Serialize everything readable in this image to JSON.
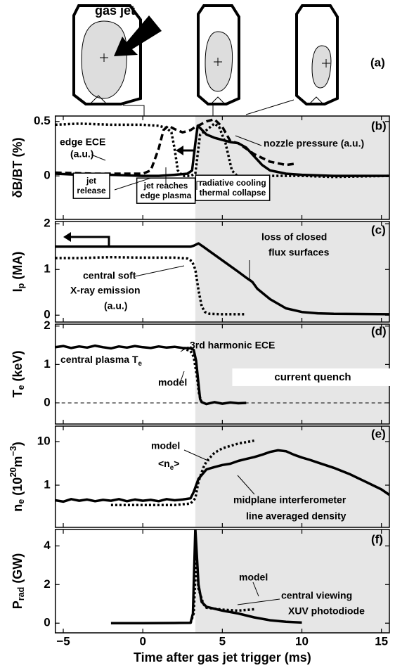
{
  "diagram": {
    "label": "(a)",
    "annotation": "gas jet"
  },
  "chart_data": [
    {
      "type": "line",
      "label": "(b)",
      "ylabel": [
        {
          "t": "δB/BT (%)"
        }
      ],
      "xlim": [
        -5.5,
        15.5
      ],
      "xticks": [
        -5,
        0,
        5,
        10,
        15
      ],
      "ylim": [
        -0.4,
        0.55
      ],
      "yticks": [
        0,
        0.5
      ],
      "log": false,
      "shade_from": 3.3,
      "series": [
        {
          "color": "#000000",
          "style": "solid",
          "x": [
            -5.5,
            -4,
            -2,
            0,
            1,
            2,
            2.8,
            3.1,
            3.3,
            3.45,
            3.6,
            4,
            4.5,
            5,
            5.5,
            6,
            6.5,
            7,
            7.5,
            8,
            9,
            10,
            12,
            15.5
          ],
          "values": [
            0.02,
            0.01,
            0.01,
            0.0,
            0.0,
            0.01,
            0.02,
            0.05,
            0.3,
            0.46,
            0.44,
            0.38,
            0.35,
            0.33,
            0.31,
            0.3,
            0.26,
            0.18,
            0.1,
            0.05,
            0.02,
            0.01,
            0.0,
            0.0
          ]
        },
        {
          "color": "#000000",
          "style": "dotted",
          "x": [
            -5.5,
            -4,
            -2,
            0,
            1,
            1.5,
            1.8,
            2,
            2.2,
            2.5,
            3,
            3.3,
            3.6,
            4,
            4.5,
            4.8,
            5.2,
            5.6,
            6,
            8,
            10,
            12,
            15.5
          ],
          "values": [
            0.47,
            0.48,
            0.47,
            0.47,
            0.46,
            0.44,
            0.4,
            0.25,
            0.05,
            0.0,
            0.0,
            0.02,
            0.38,
            0.42,
            0.48,
            0.45,
            0.3,
            0.05,
            -0.01,
            0.0,
            0.0,
            -0.01,
            0.0
          ]
        },
        {
          "color": "#000000",
          "style": "dashed",
          "x": [
            -5.5,
            -3,
            -1,
            0,
            0.5,
            1,
            1.3,
            1.6,
            2,
            2.5,
            3,
            3.3,
            3.6,
            4,
            4.5,
            5,
            5.5,
            6,
            6.5,
            7,
            8,
            9,
            9.5
          ],
          "values": [
            0.03,
            0.02,
            0.02,
            0.02,
            0.05,
            0.25,
            0.42,
            0.46,
            0.43,
            0.4,
            0.42,
            0.45,
            0.47,
            0.5,
            0.52,
            0.45,
            0.32,
            0.3,
            0.25,
            0.2,
            0.13,
            0.1,
            0.11
          ]
        }
      ],
      "annotations": [
        {
          "text": "(b)"
        },
        {
          "text": "edge ECE"
        },
        {
          "text": "(a.u.)"
        },
        {
          "text": "nozzle pressure (a.u.)"
        },
        {
          "lines": [
            "jet",
            "release"
          ],
          "box": "outlined"
        },
        {
          "lines": [
            "jet reaches",
            "edge plasma"
          ],
          "box": "outlined"
        },
        {
          "lines": [
            "radiative cooling",
            "thermal collapse"
          ],
          "box": "outlined"
        }
      ]
    },
    {
      "type": "line",
      "label": "(c)",
      "ylabel": [
        {
          "t": "I"
        },
        {
          "t": "p",
          "sub": true
        },
        {
          "t": " (MA)"
        }
      ],
      "xlim": [
        -5.5,
        15.5
      ],
      "xticks": [
        -5,
        0,
        5,
        10,
        15
      ],
      "ylim": [
        -0.15,
        2.05
      ],
      "yticks": [
        0,
        1,
        2
      ],
      "log": false,
      "shade_from": 3.3,
      "series": [
        {
          "color": "#000000",
          "style": "solid",
          "x": [
            -5.5,
            -4,
            -2,
            0,
            2,
            3,
            3.2,
            3.5,
            3.8,
            4.2,
            5,
            6,
            6.5,
            6.8,
            6.9,
            7.2,
            8,
            9,
            10,
            11,
            12,
            15.5
          ],
          "values": [
            1.5,
            1.5,
            1.5,
            1.5,
            1.5,
            1.5,
            1.52,
            1.57,
            1.5,
            1.4,
            1.2,
            0.95,
            0.82,
            0.75,
            0.72,
            0.58,
            0.35,
            0.15,
            0.07,
            0.04,
            0.03,
            0.02
          ]
        },
        {
          "color": "#000000",
          "style": "dotted",
          "x": [
            -5.5,
            -4,
            -2,
            0,
            2,
            2.8,
            3.1,
            3.3,
            3.5,
            3.7,
            3.9,
            4.2,
            5,
            6,
            6.5
          ],
          "values": [
            1.25,
            1.25,
            1.27,
            1.26,
            1.26,
            1.24,
            1.18,
            1.0,
            0.55,
            0.2,
            0.07,
            0.03,
            0.02,
            0.02,
            0.02
          ]
        }
      ],
      "annotations": [
        {
          "text": "(c)"
        },
        {
          "text": "loss of closed"
        },
        {
          "text": "flux surfaces"
        },
        {
          "text": "central soft"
        },
        {
          "text": "X-ray emission"
        },
        {
          "text": "(a.u.)"
        }
      ]
    },
    {
      "type": "line",
      "label": "(d)",
      "ylabel": [
        {
          "t": "T"
        },
        {
          "t": "e",
          "sub": true
        },
        {
          "t": " (keV)"
        }
      ],
      "xlim": [
        -5.5,
        15.5
      ],
      "xticks": [
        -5,
        0,
        5,
        10,
        15
      ],
      "ylim": [
        -0.55,
        2.05
      ],
      "yticks": [
        0,
        1,
        2
      ],
      "log": false,
      "shade_from": 3.3,
      "hline": 0,
      "series": [
        {
          "color": "#000000",
          "style": "solid",
          "x": [
            -5.5,
            -5,
            -4.5,
            -4,
            -3.5,
            -3,
            -2.5,
            -2,
            -1.5,
            -1,
            -0.5,
            0,
            0.5,
            1,
            1.5,
            2,
            2.5,
            3,
            3.2,
            3.35,
            3.5,
            3.6,
            3.7,
            4,
            4.5,
            5,
            5.5,
            6,
            6.5
          ],
          "values": [
            1.45,
            1.48,
            1.43,
            1.47,
            1.44,
            1.49,
            1.45,
            1.42,
            1.47,
            1.44,
            1.48,
            1.45,
            1.43,
            1.47,
            1.44,
            1.46,
            1.43,
            1.42,
            1.38,
            1.1,
            0.5,
            0.1,
            0.02,
            -0.03,
            0.02,
            -0.02,
            0.01,
            -0.01,
            0.0
          ]
        },
        {
          "color": "#000000",
          "style": "dotted",
          "x": [
            2.5,
            3,
            3.2,
            3.4,
            3.55,
            3.7
          ],
          "values": [
            1.42,
            1.35,
            1.2,
            0.7,
            0.2,
            0.02
          ]
        }
      ],
      "annotations": [
        {
          "text": "(d)"
        },
        {
          "text": "3rd harmonic ECE"
        },
        {
          "parts": [
            {
              "t": "central plasma T"
            },
            {
              "t": "e",
              "sub": true
            }
          ]
        },
        {
          "text": "model"
        },
        {
          "lines": [
            "current quench"
          ],
          "box": "filled"
        }
      ]
    },
    {
      "type": "line",
      "label": "(e)",
      "ylabel": [
        {
          "t": "n"
        },
        {
          "t": "e",
          "sub": true
        },
        {
          "t": " (10"
        },
        {
          "t": "20",
          "sup": true
        },
        {
          "t": "m"
        },
        {
          "t": "−3",
          "sup": true
        },
        {
          "t": ")"
        }
      ],
      "xlim": [
        -5.5,
        15.5
      ],
      "xticks": [
        -5,
        0,
        5,
        10,
        15
      ],
      "ylim": [
        0.108,
        22.6
      ],
      "yticks": [
        1,
        10
      ],
      "log": true,
      "shade_from": 3.3,
      "series": [
        {
          "color": "#000000",
          "style": "solid",
          "x": [
            -5.5,
            -5,
            -4.5,
            -4,
            -3.5,
            -3,
            -2.5,
            -2,
            -1.5,
            -1,
            -0.5,
            0,
            0.5,
            1,
            1.5,
            2,
            2.5,
            3,
            3.2,
            3.5,
            4,
            4.5,
            5,
            5.5,
            6,
            6.5,
            7,
            7.5,
            8,
            8.5,
            9,
            9.5,
            10,
            10.5,
            11,
            12,
            13,
            14,
            15,
            15.5
          ],
          "values": [
            0.45,
            0.42,
            0.48,
            0.44,
            0.47,
            0.43,
            0.46,
            0.44,
            0.48,
            0.43,
            0.47,
            0.44,
            0.46,
            0.43,
            0.48,
            0.45,
            0.47,
            0.5,
            0.7,
            1.4,
            2.3,
            2.6,
            2.9,
            3.1,
            3.6,
            4,
            4.4,
            5,
            5.8,
            6.3,
            6,
            5,
            4.3,
            3.8,
            3.3,
            2.5,
            1.8,
            1.2,
            0.8,
            0.6
          ]
        },
        {
          "color": "#000000",
          "style": "dotted",
          "x": [
            -2,
            0,
            2,
            3,
            3.3,
            3.5,
            3.8,
            4,
            4.5,
            5,
            6,
            7
          ],
          "values": [
            0.35,
            0.35,
            0.35,
            0.38,
            0.5,
            1.2,
            2.5,
            3.5,
            5.5,
            7,
            9,
            10.5
          ]
        }
      ],
      "annotations": [
        {
          "text": "(e)"
        },
        {
          "text": "model"
        },
        {
          "parts": [
            {
              "t": "<n"
            },
            {
              "t": "e",
              "sub": true
            },
            {
              "t": ">"
            }
          ]
        },
        {
          "text": "midplane interferometer"
        },
        {
          "text": "line averaged density"
        }
      ]
    },
    {
      "type": "line",
      "label": "(f)",
      "ylabel": [
        {
          "t": "P"
        },
        {
          "t": "rad",
          "sub": true
        },
        {
          "t": " (GW)"
        }
      ],
      "xlim": [
        -5.5,
        15.5
      ],
      "xticks": [
        {
          "value": -5,
          "label": "−5"
        },
        0,
        5,
        10,
        15
      ],
      "xlabel": "Time after gas jet trigger (ms)",
      "ylim": [
        -0.5,
        4.85
      ],
      "yticks": [
        0,
        2,
        4
      ],
      "log": false,
      "shade_from": 3.3,
      "series": [
        {
          "color": "#000000",
          "style": "solid",
          "x": [
            -2,
            0,
            2,
            3,
            3.15,
            3.3,
            3.4,
            3.5,
            3.7,
            4,
            4.5,
            5,
            6,
            7,
            8,
            9,
            10
          ],
          "values": [
            0,
            0,
            0.01,
            0.02,
            0.5,
            4.9,
            3.5,
            2,
            1.1,
            0.85,
            0.75,
            0.65,
            0.5,
            0.3,
            0.15,
            0.07,
            0.03
          ]
        },
        {
          "color": "#000000",
          "style": "dotted",
          "x": [
            3,
            3.2,
            3.35,
            3.5,
            3.8,
            4,
            5,
            6,
            7
          ],
          "values": [
            0,
            0.5,
            3.3,
            1.8,
            1.0,
            0.8,
            0.7,
            0.65,
            0.72
          ]
        }
      ],
      "annotations": [
        {
          "text": "(f)"
        },
        {
          "text": "model"
        },
        {
          "text": "central viewing"
        },
        {
          "text": "XUV photodiode"
        }
      ]
    }
  ]
}
